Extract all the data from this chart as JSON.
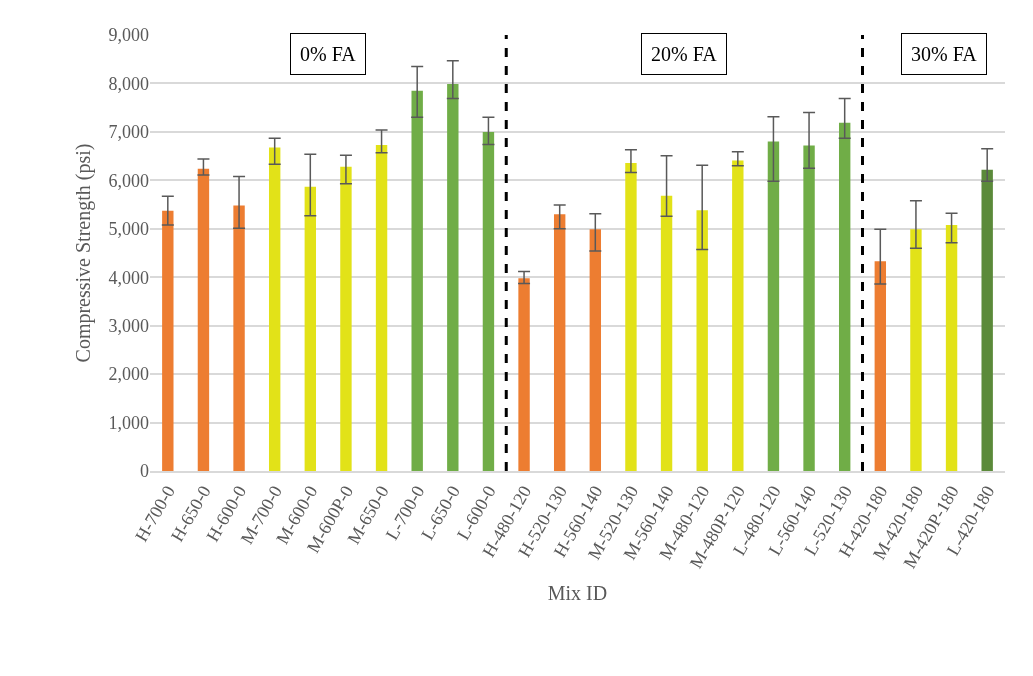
{
  "chart_data": {
    "type": "bar",
    "xlabel": "Mix ID",
    "ylabel": "Compressive Strength (psi)",
    "categories": [
      "H-700-0",
      "H-650-0",
      "H-600-0",
      "M-700-0",
      "M-600-0",
      "M-600P-0",
      "M-650-0",
      "L-700-0",
      "L-650-0",
      "L-600-0",
      "H-480-120",
      "H-520-130",
      "H-560-140",
      "M-520-130",
      "M-560-140",
      "M-480-120",
      "M-480P-120",
      "L-480-120",
      "L-560-140",
      "L-520-130",
      "H-420-180",
      "M-420-180",
      "M-420P-180",
      "L-420-180"
    ],
    "values": [
      5370,
      6240,
      5480,
      6680,
      5870,
      6280,
      6730,
      7850,
      7990,
      7000,
      3980,
      5300,
      4990,
      6360,
      5680,
      5380,
      6410,
      6800,
      6720,
      7190,
      4330,
      4990,
      5080,
      6220
    ],
    "errors": [
      [
        5080,
        5670
      ],
      [
        6110,
        6440
      ],
      [
        5010,
        6080
      ],
      [
        6330,
        6870
      ],
      [
        5270,
        6540
      ],
      [
        5930,
        6520
      ],
      [
        6570,
        7040
      ],
      [
        7300,
        8350
      ],
      [
        7690,
        8470
      ],
      [
        6740,
        7300
      ],
      [
        3870,
        4120
      ],
      [
        5000,
        5490
      ],
      [
        4540,
        5310
      ],
      [
        6160,
        6630
      ],
      [
        5260,
        6510
      ],
      [
        4570,
        6310
      ],
      [
        6300,
        6590
      ],
      [
        5980,
        7310
      ],
      [
        6250,
        7400
      ],
      [
        6870,
        7690
      ],
      [
        3860,
        4990
      ],
      [
        4600,
        5580
      ],
      [
        4710,
        5320
      ],
      [
        5980,
        6650
      ]
    ],
    "colors": [
      "#ed7d31",
      "#ed7d31",
      "#ed7d31",
      "#e2e218",
      "#e2e218",
      "#e2e218",
      "#e2e218",
      "#70ad47",
      "#70ad47",
      "#70ad47",
      "#ed7d31",
      "#ed7d31",
      "#ed7d31",
      "#e2e218",
      "#e2e218",
      "#e2e218",
      "#e2e218",
      "#70ad47",
      "#70ad47",
      "#70ad47",
      "#ed7d31",
      "#e2e218",
      "#e2e218",
      "#5b8a3a"
    ],
    "ylim": [
      0,
      9000
    ],
    "yticks": [
      {
        "value": 0,
        "label": "0"
      },
      {
        "value": 1000,
        "label": "1,000"
      },
      {
        "value": 2000,
        "label": "2,000"
      },
      {
        "value": 3000,
        "label": "3,000"
      },
      {
        "value": 4000,
        "label": "4,000"
      },
      {
        "value": 5000,
        "label": "5,000"
      },
      {
        "value": 6000,
        "label": "6,000"
      },
      {
        "value": 7000,
        "label": "7,000"
      },
      {
        "value": 8000,
        "label": "8,000"
      },
      {
        "value": 9000,
        "label": "9,000"
      }
    ],
    "grid": "y",
    "annotations": [
      "0% FA",
      "20% FA",
      "30% FA"
    ]
  }
}
